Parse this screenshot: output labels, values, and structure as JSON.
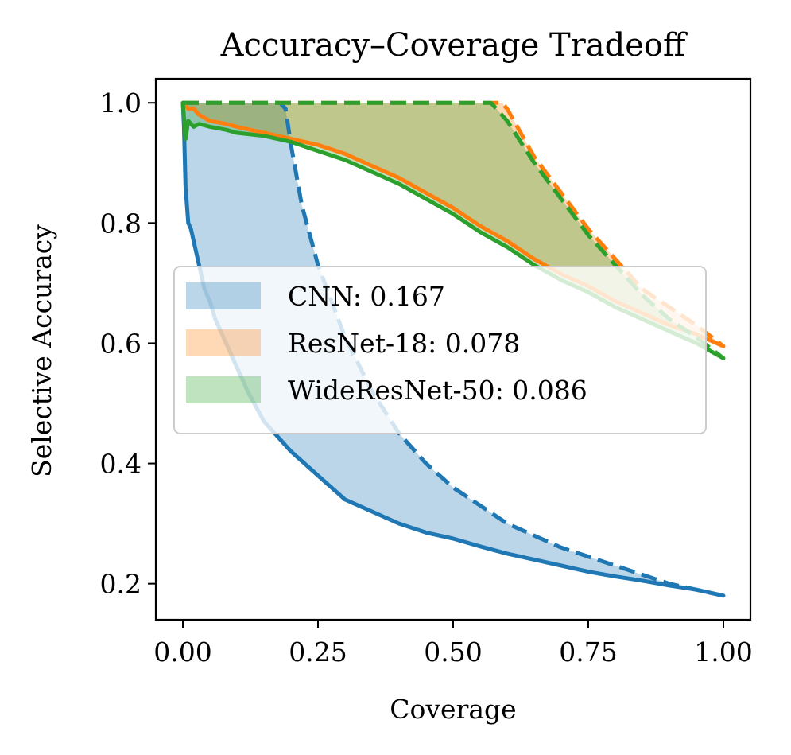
{
  "chart_data": {
    "type": "line",
    "title": "Accuracy–Coverage Tradeoff",
    "xlabel": "Coverage",
    "ylabel": "Selective Accuracy",
    "xlim": [
      -0.05,
      1.05
    ],
    "ylim": [
      0.14,
      1.04
    ],
    "xticks": [
      0.0,
      0.25,
      0.5,
      0.75,
      1.0
    ],
    "xtick_labels": [
      "0.00",
      "0.25",
      "0.50",
      "0.75",
      "1.00"
    ],
    "yticks": [
      0.2,
      0.4,
      0.6,
      0.8,
      1.0
    ],
    "ytick_labels": [
      "0.2",
      "0.4",
      "0.6",
      "0.8",
      "1.0"
    ],
    "grid": false,
    "legend_position": "center-left",
    "series": [
      {
        "name": "CNN",
        "legend_label": "CNN: 0.167",
        "color": "#1f77b4",
        "fill_alpha": 0.3,
        "actual": {
          "x": [
            0.0,
            0.002,
            0.005,
            0.01,
            0.015,
            0.02,
            0.03,
            0.04,
            0.05,
            0.06,
            0.08,
            0.1,
            0.12,
            0.15,
            0.18,
            0.2,
            0.25,
            0.3,
            0.35,
            0.4,
            0.45,
            0.5,
            0.55,
            0.6,
            0.65,
            0.7,
            0.75,
            0.8,
            0.85,
            0.9,
            0.95,
            1.0
          ],
          "y": [
            1.0,
            0.96,
            0.86,
            0.8,
            0.79,
            0.77,
            0.73,
            0.69,
            0.67,
            0.64,
            0.6,
            0.56,
            0.52,
            0.47,
            0.44,
            0.42,
            0.38,
            0.34,
            0.32,
            0.3,
            0.285,
            0.275,
            0.262,
            0.25,
            0.24,
            0.23,
            0.22,
            0.212,
            0.205,
            0.197,
            0.19,
            0.18
          ]
        },
        "oracle": {
          "x": [
            0.0,
            0.18,
            0.19,
            0.2,
            0.22,
            0.25,
            0.3,
            0.35,
            0.4,
            0.45,
            0.5,
            0.55,
            0.6,
            0.7,
            0.8,
            0.9,
            1.0
          ],
          "y": [
            1.0,
            1.0,
            0.99,
            0.93,
            0.83,
            0.73,
            0.61,
            0.52,
            0.45,
            0.4,
            0.36,
            0.33,
            0.3,
            0.26,
            0.23,
            0.2,
            0.18
          ]
        }
      },
      {
        "name": "ResNet-18",
        "legend_label": "ResNet-18: 0.078",
        "color": "#ff7f0e",
        "fill_alpha": 0.3,
        "actual": {
          "x": [
            0.0,
            0.01,
            0.02,
            0.03,
            0.05,
            0.08,
            0.1,
            0.15,
            0.2,
            0.25,
            0.3,
            0.35,
            0.4,
            0.45,
            0.5,
            0.55,
            0.6,
            0.65,
            0.7,
            0.75,
            0.8,
            0.85,
            0.9,
            0.95,
            1.0
          ],
          "y": [
            1.0,
            0.99,
            0.99,
            0.98,
            0.97,
            0.965,
            0.96,
            0.95,
            0.94,
            0.93,
            0.915,
            0.895,
            0.875,
            0.85,
            0.825,
            0.795,
            0.77,
            0.74,
            0.715,
            0.695,
            0.67,
            0.65,
            0.63,
            0.615,
            0.595
          ]
        },
        "oracle": {
          "x": [
            0.0,
            0.59,
            0.6,
            0.65,
            0.7,
            0.75,
            0.8,
            0.85,
            0.9,
            0.95,
            1.0
          ],
          "y": [
            1.0,
            1.0,
            0.99,
            0.91,
            0.85,
            0.79,
            0.74,
            0.69,
            0.66,
            0.63,
            0.595
          ]
        }
      },
      {
        "name": "WideResNet-50",
        "legend_label": "WideResNet-50: 0.086",
        "color": "#2ca02c",
        "fill_alpha": 0.3,
        "actual": {
          "x": [
            0.0,
            0.005,
            0.01,
            0.02,
            0.03,
            0.05,
            0.08,
            0.1,
            0.15,
            0.2,
            0.25,
            0.3,
            0.35,
            0.4,
            0.45,
            0.5,
            0.55,
            0.6,
            0.65,
            0.7,
            0.75,
            0.8,
            0.85,
            0.9,
            0.95,
            1.0
          ],
          "y": [
            1.0,
            0.94,
            0.97,
            0.96,
            0.965,
            0.96,
            0.955,
            0.95,
            0.945,
            0.935,
            0.92,
            0.905,
            0.885,
            0.865,
            0.84,
            0.815,
            0.785,
            0.76,
            0.73,
            0.705,
            0.685,
            0.66,
            0.64,
            0.62,
            0.6,
            0.575
          ]
        },
        "oracle": {
          "x": [
            0.0,
            0.57,
            0.58,
            0.6,
            0.65,
            0.7,
            0.75,
            0.8,
            0.85,
            0.9,
            0.95,
            1.0
          ],
          "y": [
            1.0,
            1.0,
            0.99,
            0.97,
            0.9,
            0.84,
            0.78,
            0.73,
            0.68,
            0.64,
            0.61,
            0.575
          ]
        }
      }
    ]
  }
}
